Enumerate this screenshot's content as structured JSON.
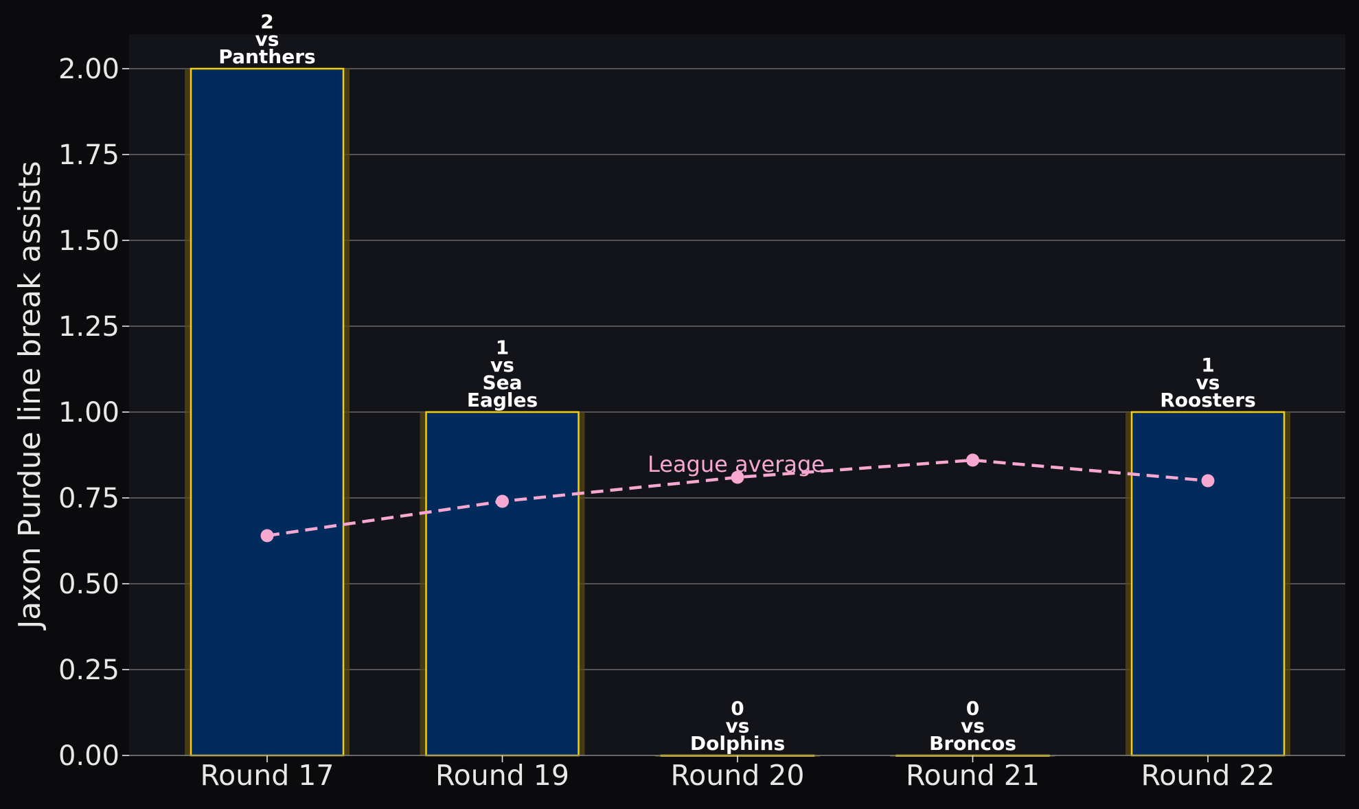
{
  "chart_data": {
    "type": "bar",
    "ylabel": "Jaxon Purdue line break assists",
    "ylim": [
      0,
      2.1
    ],
    "yticks": [
      0,
      0.25,
      0.5,
      0.75,
      1.0,
      1.25,
      1.5,
      1.75,
      2.0
    ],
    "ytick_labels": [
      "0.00",
      "0.25",
      "0.50",
      "0.75",
      "1.00",
      "1.25",
      "1.50",
      "1.75",
      "2.00"
    ],
    "grid": true,
    "categories": [
      "Round 17",
      "Round 19",
      "Round 20",
      "Round 21",
      "Round 22"
    ],
    "values": [
      2,
      1,
      0,
      0,
      1
    ],
    "bar_labels": [
      [
        "2",
        "vs",
        "Panthers"
      ],
      [
        "1",
        "vs",
        "Sea",
        "Eagles"
      ],
      [
        "0",
        "vs",
        "Dolphins"
      ],
      [
        "0",
        "vs",
        "Broncos"
      ],
      [
        "1",
        "vs",
        "Roosters"
      ]
    ],
    "line_series": {
      "name": "League average",
      "values": [
        0.64,
        0.74,
        0.81,
        0.86,
        0.8
      ],
      "style": "dashed"
    },
    "colors": {
      "background": "#0b0b0e",
      "plot_background": "#13131a",
      "bar_fill": "#002b5c",
      "bar_edge": "#f5d000",
      "bar_glow": "#5a4a12",
      "line": "#f7a8d0",
      "text": "#e8e8e8",
      "grid": "#6b6b6b"
    }
  }
}
